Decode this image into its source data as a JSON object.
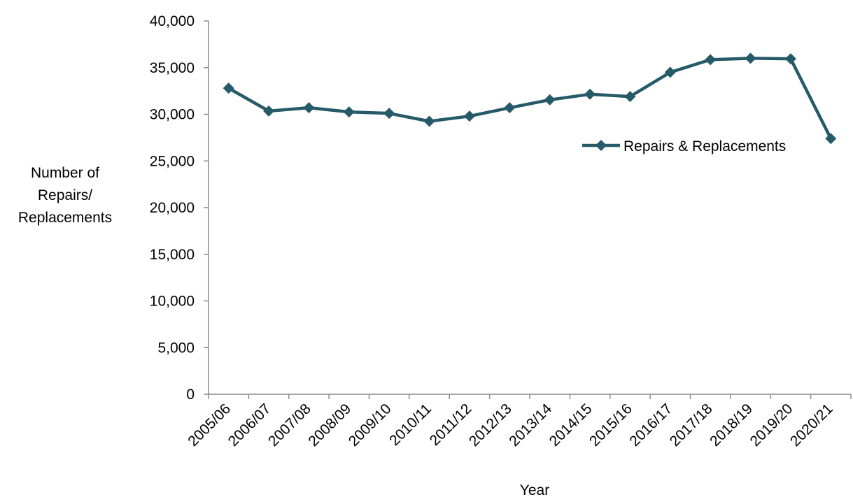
{
  "chart_data": {
    "type": "line",
    "categories": [
      "2005/06",
      "2006/07",
      "2007/08",
      "2008/09",
      "2009/10",
      "2010/11",
      "2011/12",
      "2012/13",
      "2013/14",
      "2014/15",
      "2015/16",
      "2016/17",
      "2017/18",
      "2018/19",
      "2019/20",
      "2020/21"
    ],
    "series": [
      {
        "name": "Repairs & Replacements",
        "values": [
          32800,
          30350,
          30700,
          30250,
          30100,
          29250,
          29800,
          30700,
          31550,
          32150,
          31900,
          34500,
          35850,
          36000,
          35950,
          27400
        ],
        "color": "#265a68"
      }
    ],
    "xlabel": "Year",
    "ylabel_lines": [
      "Number of",
      "Repairs/",
      "Replacements"
    ],
    "ylim": [
      0,
      40000
    ],
    "yticks": [
      0,
      5000,
      10000,
      15000,
      20000,
      25000,
      30000,
      35000,
      40000
    ],
    "ytick_labels": [
      "0",
      "5,000",
      "10,000",
      "15,000",
      "20,000",
      "25,000",
      "30,000",
      "35,000",
      "40,000"
    ],
    "grid": false,
    "legend_position": "right",
    "marker": "diamond"
  }
}
